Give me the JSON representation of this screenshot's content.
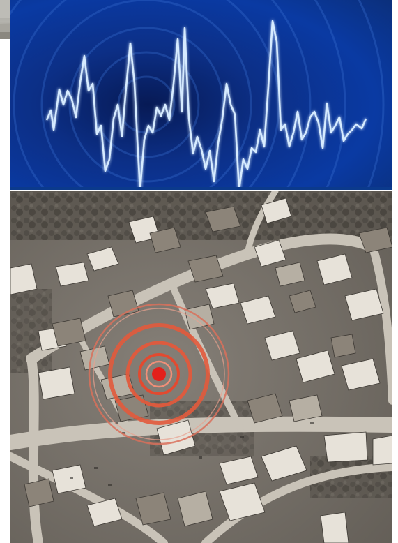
{
  "photos": [
    {
      "name": "paved-courtyard-photo"
    },
    {
      "name": "gravel-garden-photo"
    }
  ],
  "panels": {
    "seismograph": {
      "icon": "seismic-waveform",
      "background_color": "#0a2a78",
      "wave_color": "#cfe6ff"
    },
    "aerial_map": {
      "icon": "aerial-neighborhood",
      "tone": "sepia",
      "marker_color": "#e3201b",
      "ring_color": "#d9705a"
    }
  }
}
